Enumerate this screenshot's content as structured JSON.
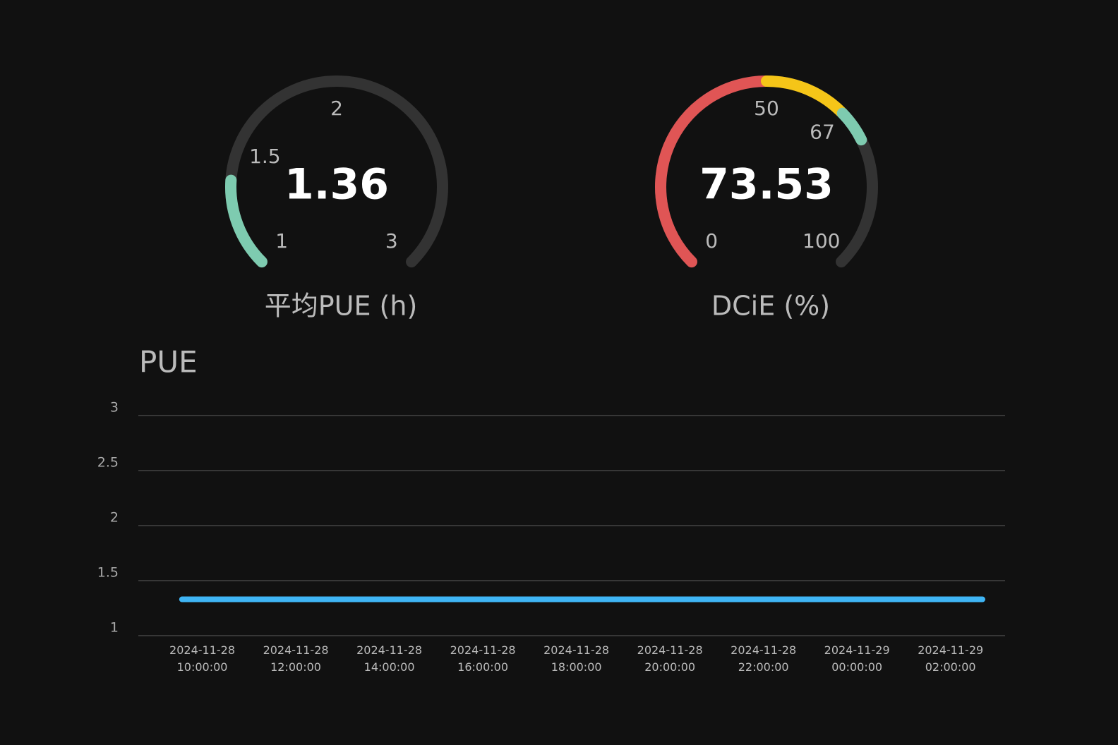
{
  "chart_data": [
    {
      "type": "gauge",
      "title": "平均PUE (h)",
      "value": 1.36,
      "ylim": [
        1,
        3
      ],
      "yticks": [
        1,
        1.5,
        2,
        3
      ],
      "band_colors": [
        "#7ecbb0"
      ],
      "track_color": "#333333"
    },
    {
      "type": "gauge",
      "title": "DCiE (%)",
      "value": 73.53,
      "ylim": [
        0,
        100
      ],
      "yticks": [
        0,
        50,
        67,
        100
      ],
      "band_colors": [
        "#e05555",
        "#f5c518",
        "#7ecbb0"
      ],
      "track_color": "#333333"
    },
    {
      "type": "line",
      "title": "PUE",
      "x": [
        "2024-11-28 09:34:00",
        "2024-11-28 10:34:00",
        "2024-11-28 11:34:00",
        "2024-11-28 12:34:00",
        "2024-11-28 13:34:00",
        "2024-11-28 14:34:00",
        "2024-11-28 15:34:00",
        "2024-11-28 16:34:00",
        "2024-11-28 17:34:00",
        "2024-11-28 18:34:00",
        "2024-11-28 19:34:00",
        "2024-11-28 20:34:00",
        "2024-11-28 21:34:00",
        "2024-11-28 22:34:00",
        "2024-11-28 23:34:00",
        "2024-11-29 00:34:00",
        "2024-11-29 01:34:00",
        "2024-11-29 02:41:00"
      ],
      "series": [
        {
          "name": "PUE",
          "color": "#3fb5f5",
          "values": [
            1.33,
            1.33,
            1.33,
            1.33,
            1.33,
            1.33,
            1.33,
            1.33,
            1.33,
            1.33,
            1.33,
            1.33,
            1.33,
            1.33,
            1.33,
            1.33,
            1.33,
            1.33
          ]
        }
      ],
      "xlim": [
        "2024-11-28 08:38:00",
        "2024-11-29 03:10:00"
      ],
      "xticks": [
        "2024-11-28 10:00:00",
        "2024-11-28 12:00:00",
        "2024-11-28 14:00:00",
        "2024-11-28 16:00:00",
        "2024-11-28 18:00:00",
        "2024-11-28 20:00:00",
        "2024-11-28 22:00:00",
        "2024-11-29 00:00:00",
        "2024-11-29 02:00:00"
      ],
      "ylim": [
        1,
        3
      ],
      "yticks": [
        1,
        1.5,
        2,
        2.5,
        3
      ],
      "grid": true
    }
  ]
}
